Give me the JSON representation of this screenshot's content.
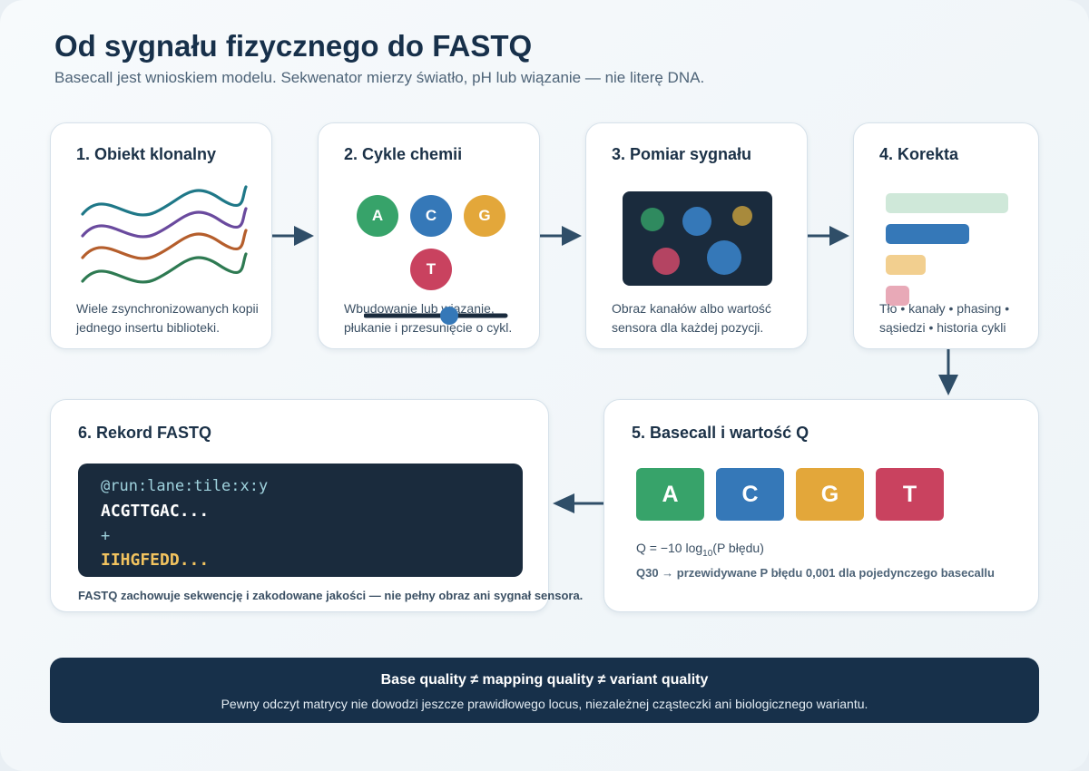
{
  "header": {
    "title": "Od sygnału fizycznego do FASTQ",
    "subtitle": "Basecall jest wnioskiem modelu. Sekwenator mierzy światło, pH lub wiązanie — nie literę DNA."
  },
  "colors": {
    "A": "#37a36a",
    "C": "#3578b8",
    "G": "#e3a73a",
    "T": "#c9425f",
    "dark": "#1a2b3d",
    "arrow": "#2f4e68"
  },
  "cards": {
    "step1": {
      "title": "1. Obiekt klonalny",
      "description": "Wiele zsynchronizowanych kopii jednego insertu biblioteki."
    },
    "step2": {
      "title": "2. Cykle chemii",
      "description": "Wbudowanie lub wiązanie, płukanie i przesunięcie o cykl.",
      "bases": [
        "A",
        "C",
        "G",
        "T"
      ]
    },
    "step3": {
      "title": "3. Pomiar sygnału",
      "description": "Obraz kanałów albo wartość sensora dla każdej pozycji."
    },
    "step4": {
      "title": "4. Korekta",
      "description": "Tło • kanały • phasing • sąsiedzi • historia cykli"
    },
    "step5": {
      "title": "5. Basecall i wartość Q",
      "bases": [
        "A",
        "C",
        "G",
        "T"
      ],
      "formula_prefix": "Q = −10 log",
      "formula_sub": "10",
      "formula_suffix": "(P błędu)",
      "q30_note": "Q30 → przewidywane P błędu 0,001 dla pojedynczego basecallu"
    },
    "step6": {
      "title": "6. Rekord FASTQ",
      "fastq": {
        "header": "@run:lane:tile:x:y",
        "sequence": "ACGTTGAC...",
        "separator": "+",
        "quality": "IIHGFEDD..."
      },
      "note": "FASTQ zachowuje sekwencję i zakodowane jakości — nie pełny obraz ani sygnał sensora."
    }
  },
  "footer": {
    "title": "Base quality ≠ mapping quality ≠ variant quality",
    "text": "Pewny odczyt matrycy nie dowodzi jeszcze prawidłowego locus, niezależnej cząsteczki ani biologicznego wariantu."
  }
}
